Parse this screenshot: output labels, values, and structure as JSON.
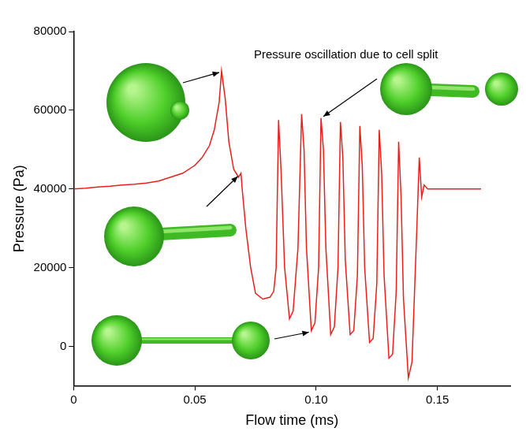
{
  "chart_data": {
    "type": "line",
    "x_label": "Flow time (ms)",
    "y_label": "Pressure (Pa)",
    "annotation": "Pressure oscillation due to cell split",
    "x": [
      0,
      0.005,
      0.01,
      0.015,
      0.02,
      0.025,
      0.03,
      0.035,
      0.04,
      0.045,
      0.05,
      0.053,
      0.056,
      0.058,
      0.06,
      0.061,
      0.0625,
      0.064,
      0.066,
      0.068,
      0.069,
      0.0695,
      0.071,
      0.073,
      0.075,
      0.078,
      0.081,
      0.0825,
      0.0835,
      0.0845,
      0.0855,
      0.087,
      0.089,
      0.0905,
      0.0925,
      0.094,
      0.095,
      0.096,
      0.098,
      0.0995,
      0.101,
      0.102,
      0.103,
      0.104,
      0.106,
      0.1075,
      0.109,
      0.11,
      0.111,
      0.112,
      0.114,
      0.1155,
      0.117,
      0.118,
      0.119,
      0.12,
      0.122,
      0.1235,
      0.125,
      0.126,
      0.127,
      0.128,
      0.13,
      0.1315,
      0.133,
      0.134,
      0.135,
      0.136,
      0.138,
      0.1395,
      0.1415,
      0.1425,
      0.1435,
      0.1445,
      0.146,
      0.15,
      0.16,
      0.168
    ],
    "values": [
      40000,
      40200,
      40500,
      40700,
      41000,
      41200,
      41500,
      42000,
      43000,
      44000,
      46000,
      48000,
      51000,
      55000,
      62000,
      70000,
      63000,
      52000,
      45000,
      43000,
      44000,
      40000,
      30000,
      20000,
      13500,
      12000,
      12500,
      14000,
      20000,
      57500,
      45000,
      20000,
      7000,
      9000,
      25000,
      59000,
      50000,
      25000,
      4000,
      6000,
      20000,
      58000,
      50000,
      25000,
      3000,
      5000,
      20000,
      57000,
      48000,
      22000,
      3000,
      4000,
      18000,
      56000,
      46000,
      20000,
      1000,
      2000,
      16000,
      55000,
      44000,
      18000,
      -3000,
      -2000,
      14000,
      52000,
      38000,
      12000,
      -8000,
      -4000,
      30000,
      48000,
      38000,
      41000,
      40000,
      40000,
      40000,
      40000
    ],
    "color": "#e8201c",
    "xlim": [
      0,
      0.18
    ],
    "xticks": [
      0,
      0.05,
      {
        "value": 0.1,
        "label": "0.10"
      },
      0.15
    ],
    "ylim": [
      -10000,
      80000
    ],
    "yticks": [
      0,
      20000,
      40000,
      60000,
      80000
    ],
    "grid": false
  }
}
